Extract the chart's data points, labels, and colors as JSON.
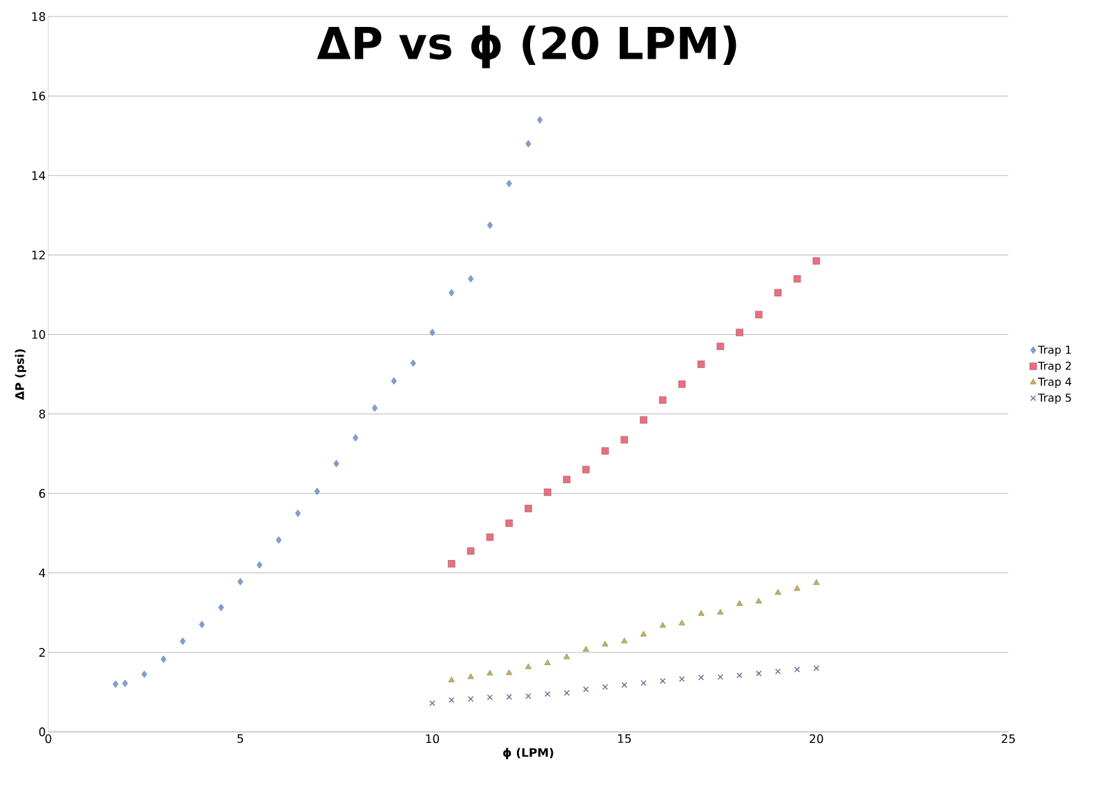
{
  "chart_data": {
    "type": "scatter",
    "title": "ΔP vs ϕ (20 LPM)",
    "xlabel": "ϕ (LPM)",
    "ylabel": "ΔP (psi)",
    "xlim": [
      0,
      25
    ],
    "xticks": [
      0,
      5,
      10,
      15,
      20,
      25
    ],
    "ylim": [
      0,
      18
    ],
    "yticks": [
      0,
      2,
      4,
      6,
      8,
      10,
      12,
      14,
      16,
      18
    ],
    "grid": "y",
    "legend": "right",
    "series": [
      {
        "name": "Trap 1",
        "color": "#7f9fd9",
        "marker": "diamond",
        "x": [
          1.75,
          2,
          2.5,
          3,
          3.5,
          4,
          4.5,
          5,
          5.5,
          6,
          6.5,
          7,
          7.5,
          8,
          8.5,
          9,
          9.5,
          10,
          10.5,
          11,
          11.5,
          12,
          12.5,
          12.8
        ],
        "values": [
          1.2,
          1.22,
          1.45,
          1.83,
          2.28,
          2.7,
          3.13,
          3.78,
          4.2,
          4.83,
          5.5,
          6.05,
          6.75,
          7.4,
          8.15,
          8.83,
          9.28,
          10.05,
          11.05,
          11.4,
          12.75,
          13.8,
          14.8,
          15.4
        ]
      },
      {
        "name": "Trap 2",
        "color": "#e8707f",
        "marker": "square",
        "x": [
          10.5,
          11,
          11.5,
          12,
          12.5,
          13,
          13.5,
          14,
          14.5,
          15,
          15.5,
          16,
          16.5,
          17,
          17.5,
          18,
          18.5,
          19,
          19.5,
          20
        ],
        "values": [
          4.23,
          4.55,
          4.9,
          5.25,
          5.62,
          6.03,
          6.35,
          6.6,
          7.07,
          7.35,
          7.85,
          8.35,
          8.75,
          9.25,
          9.7,
          10.05,
          10.5,
          11.05,
          11.4,
          11.85
        ]
      },
      {
        "name": "Trap 4",
        "color": "#c2b260",
        "marker": "triangle",
        "x": [
          10.5,
          11,
          11.5,
          12,
          12.5,
          13,
          13.5,
          14,
          14.5,
          15,
          15.5,
          16,
          16.5,
          17,
          17.5,
          18,
          18.5,
          19,
          19.5,
          20
        ],
        "values": [
          1.3,
          1.38,
          1.47,
          1.48,
          1.63,
          1.73,
          1.88,
          2.07,
          2.2,
          2.28,
          2.45,
          2.67,
          2.73,
          2.97,
          3.0,
          3.22,
          3.28,
          3.5,
          3.6,
          3.75
        ]
      },
      {
        "name": "Trap 5",
        "color": "#6e6e9a",
        "marker": "cross",
        "x": [
          10,
          10.5,
          11,
          11.5,
          12,
          12.5,
          13,
          13.5,
          14,
          14.5,
          15,
          15.5,
          16,
          16.5,
          17,
          17.5,
          18,
          18.5,
          19,
          19.5,
          20
        ],
        "values": [
          0.72,
          0.8,
          0.83,
          0.87,
          0.88,
          0.9,
          0.95,
          0.98,
          1.07,
          1.13,
          1.18,
          1.23,
          1.28,
          1.33,
          1.37,
          1.38,
          1.42,
          1.47,
          1.52,
          1.57,
          1.6
        ]
      }
    ]
  }
}
